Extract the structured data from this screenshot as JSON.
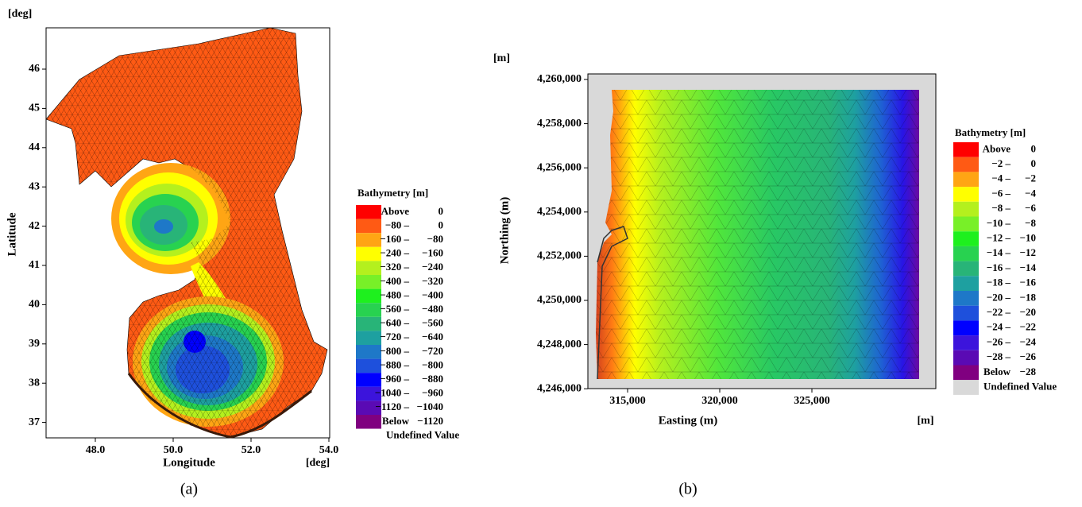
{
  "panels": [
    {
      "y_unit": "[deg]",
      "y_label": "Latitude",
      "x_label": "Longitude",
      "x_unit": "[deg]",
      "yticks": [
        "46",
        "45",
        "44",
        "43",
        "42",
        "41",
        "40",
        "39",
        "38",
        "37"
      ],
      "xticks": [
        "48.0",
        "50.0",
        "52.0",
        "54.0"
      ],
      "legend": {
        "title": "Bathymetry [m]",
        "entries": [
          {
            "from": "Above",
            "to": "0",
            "color": "#ff0000"
          },
          {
            "from": "−80 –",
            "to": "0",
            "color": "#ff5a14"
          },
          {
            "from": "−160 –",
            "to": "−80",
            "color": "#ffa514"
          },
          {
            "from": "−240 –",
            "to": "−160",
            "color": "#ffff00"
          },
          {
            "from": "−320 –",
            "to": "−240",
            "color": "#b4f01e"
          },
          {
            "from": "−400 –",
            "to": "−320",
            "color": "#78f028"
          },
          {
            "from": "−480 –",
            "to": "−400",
            "color": "#1ef01e"
          },
          {
            "from": "−560 –",
            "to": "−480",
            "color": "#28d250"
          },
          {
            "from": "−640 –",
            "to": "−560",
            "color": "#28b478"
          },
          {
            "from": "−720 –",
            "to": "−640",
            "color": "#1ea0a0"
          },
          {
            "from": "−800 –",
            "to": "−720",
            "color": "#1e78c8"
          },
          {
            "from": "−880 –",
            "to": "−800",
            "color": "#1e50dc"
          },
          {
            "from": "−960 –",
            "to": "−880",
            "color": "#0000ff"
          },
          {
            "from": "−1040 –",
            "to": "−960",
            "color": "#3c14dc"
          },
          {
            "from": "−1120 –",
            "to": "−1040",
            "color": "#5a0ab4"
          },
          {
            "from": "Below",
            "to": "−1120",
            "color": "#800080"
          }
        ],
        "undefined": "Undefined Value",
        "undefined_color": "#ffffff"
      },
      "caption": "(a)"
    },
    {
      "y_unit": "[m]",
      "y_label": "Northing (m)",
      "x_label": "Easting (m)",
      "x_unit": "[m]",
      "yticks": [
        "4,260,000",
        "4,258,000",
        "4,256,000",
        "4,254,000",
        "4,252,000",
        "4,250,000",
        "4,248,000",
        "4,246,000"
      ],
      "xticks": [
        "315,000",
        "320,000",
        "325,000"
      ],
      "legend": {
        "title": "Bathymetry [m]",
        "entries": [
          {
            "from": "Above",
            "to": "0",
            "color": "#ff0000"
          },
          {
            "from": "−2 –",
            "to": "0",
            "color": "#ff5a14"
          },
          {
            "from": "−4 –",
            "to": "−2",
            "color": "#ffa514"
          },
          {
            "from": "−6 –",
            "to": "−4",
            "color": "#ffff00"
          },
          {
            "from": "−8 –",
            "to": "−6",
            "color": "#b4f01e"
          },
          {
            "from": "−10 –",
            "to": "−8",
            "color": "#78f028"
          },
          {
            "from": "−12 –",
            "to": "−10",
            "color": "#1ef01e"
          },
          {
            "from": "−14 –",
            "to": "−12",
            "color": "#28d250"
          },
          {
            "from": "−16 –",
            "to": "−14",
            "color": "#28b478"
          },
          {
            "from": "−18 –",
            "to": "−16",
            "color": "#1ea0a0"
          },
          {
            "from": "−20 –",
            "to": "−18",
            "color": "#1e78c8"
          },
          {
            "from": "−22 –",
            "to": "−20",
            "color": "#1e50dc"
          },
          {
            "from": "−24 –",
            "to": "−22",
            "color": "#0000ff"
          },
          {
            "from": "−26 –",
            "to": "−24",
            "color": "#3c14dc"
          },
          {
            "from": "−28 –",
            "to": "−26",
            "color": "#5a0ab4"
          },
          {
            "from": "Below",
            "to": "−28",
            "color": "#800080"
          }
        ],
        "undefined": "Undefined Value",
        "undefined_color": "#d9d9d9"
      },
      "caption": "(b)"
    }
  ]
}
